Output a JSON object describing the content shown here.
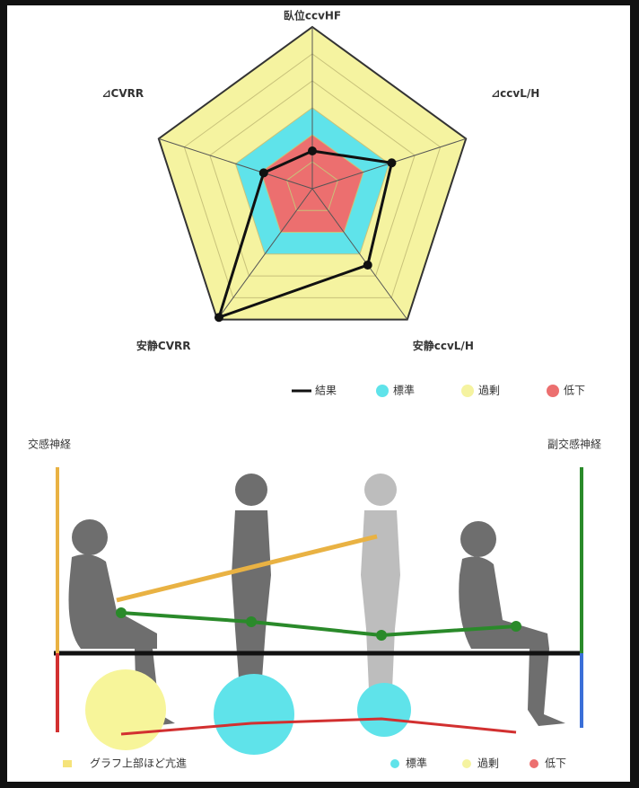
{
  "chart_data": {
    "type": "radar",
    "axes": [
      "臥位ccvHF",
      "⊿ccvL/H",
      "安静ccvL/H",
      "安静CVRR",
      "⊿CVRR"
    ],
    "rlim": [
      0,
      6
    ],
    "rticks": [
      1,
      2,
      3,
      4,
      5,
      6
    ],
    "bands": [
      {
        "name": "過剰",
        "color": "#f5f3a0",
        "value": 6
      },
      {
        "name": "標準",
        "color": "#5fe3ea",
        "value": 3
      },
      {
        "name": "低下",
        "color": "#ec6f6f",
        "value": 2
      }
    ],
    "series": [
      {
        "name": "結果",
        "color": "#111111",
        "values": [
          1.4,
          3.1,
          3.5,
          5.9,
          1.9
        ]
      }
    ]
  },
  "diagram": {
    "left_label": "交感神経",
    "right_label": "副交感神経",
    "note": "グラフ上部ほど亢進",
    "legend": [
      "標準",
      "過剰",
      "低下"
    ]
  }
}
